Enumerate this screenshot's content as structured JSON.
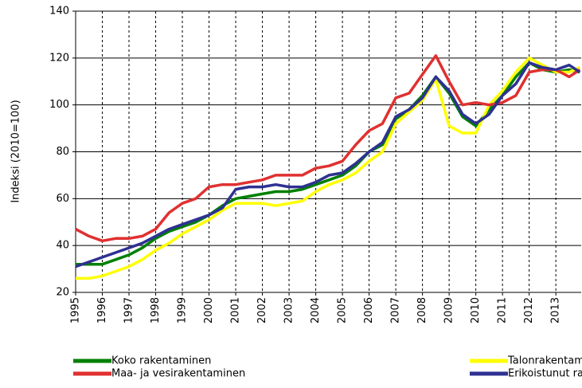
{
  "chart_data": {
    "type": "line",
    "ylabel": "Indeksi (2010=100)",
    "x": [
      1995,
      1995.5,
      1996,
      1996.5,
      1997,
      1997.5,
      1998,
      1998.5,
      1999,
      1999.5,
      2000,
      2000.5,
      2001,
      2001.5,
      2002,
      2002.5,
      2003,
      2003.5,
      2004,
      2004.5,
      2005,
      2005.5,
      2006,
      2006.5,
      2007,
      2007.5,
      2008,
      2008.5,
      2009,
      2009.5,
      2010,
      2010.5,
      2011,
      2011.5,
      2012,
      2012.5,
      2013,
      2013.5,
      2013.9
    ],
    "xlim": [
      1995,
      2013.95
    ],
    "xticks": [
      1995,
      1996,
      1997,
      1998,
      1999,
      2000,
      2001,
      2002,
      2003,
      2004,
      2005,
      2006,
      2007,
      2008,
      2009,
      2010,
      2011,
      2012,
      2013
    ],
    "ylim": [
      20,
      140
    ],
    "yticks": [
      20,
      40,
      60,
      80,
      100,
      120,
      140
    ],
    "grid": true,
    "legend": "bottom",
    "series": [
      {
        "name": "Koko rakentaminen",
        "color": "#008000",
        "values": [
          32,
          32,
          32,
          34,
          36,
          39,
          43,
          46,
          48,
          50,
          53,
          57,
          60,
          61,
          62,
          63,
          63,
          64,
          66,
          68,
          70,
          74,
          80,
          83,
          94,
          98,
          104,
          112,
          105,
          95,
          91,
          98,
          104,
          112,
          118,
          115,
          114,
          115,
          114
        ]
      },
      {
        "name": "Talonrakentaminen",
        "color": "#ffff00",
        "values": [
          26,
          26,
          27,
          29,
          31,
          34,
          38,
          41,
          45,
          48,
          51,
          55,
          58,
          58,
          58,
          57,
          58,
          59,
          63,
          66,
          68,
          71,
          76,
          80,
          92,
          97,
          102,
          111,
          91,
          88,
          88,
          100,
          106,
          114,
          120,
          117,
          114,
          114,
          116
        ]
      },
      {
        "name": "Maa- ja vesirakentaminen",
        "color": "#e03030",
        "values": [
          47,
          44,
          42,
          43,
          43,
          44,
          47,
          54,
          58,
          60,
          65,
          66,
          66,
          67,
          68,
          70,
          70,
          70,
          73,
          74,
          76,
          83,
          89,
          92,
          103,
          105,
          113,
          121,
          110,
          100,
          101,
          100,
          101,
          104,
          114,
          115,
          115,
          112,
          115
        ]
      },
      {
        "name": "Erikoistunut rakennustoiminta",
        "color": "#2e3192",
        "values": [
          31,
          33,
          35,
          37,
          39,
          41,
          44,
          47,
          49,
          51,
          53,
          56,
          64,
          65,
          65,
          66,
          65,
          65,
          67,
          70,
          71,
          75,
          80,
          84,
          95,
          98,
          103,
          112,
          106,
          96,
          92,
          96,
          104,
          109,
          118,
          116,
          115,
          117,
          114
        ]
      }
    ]
  }
}
